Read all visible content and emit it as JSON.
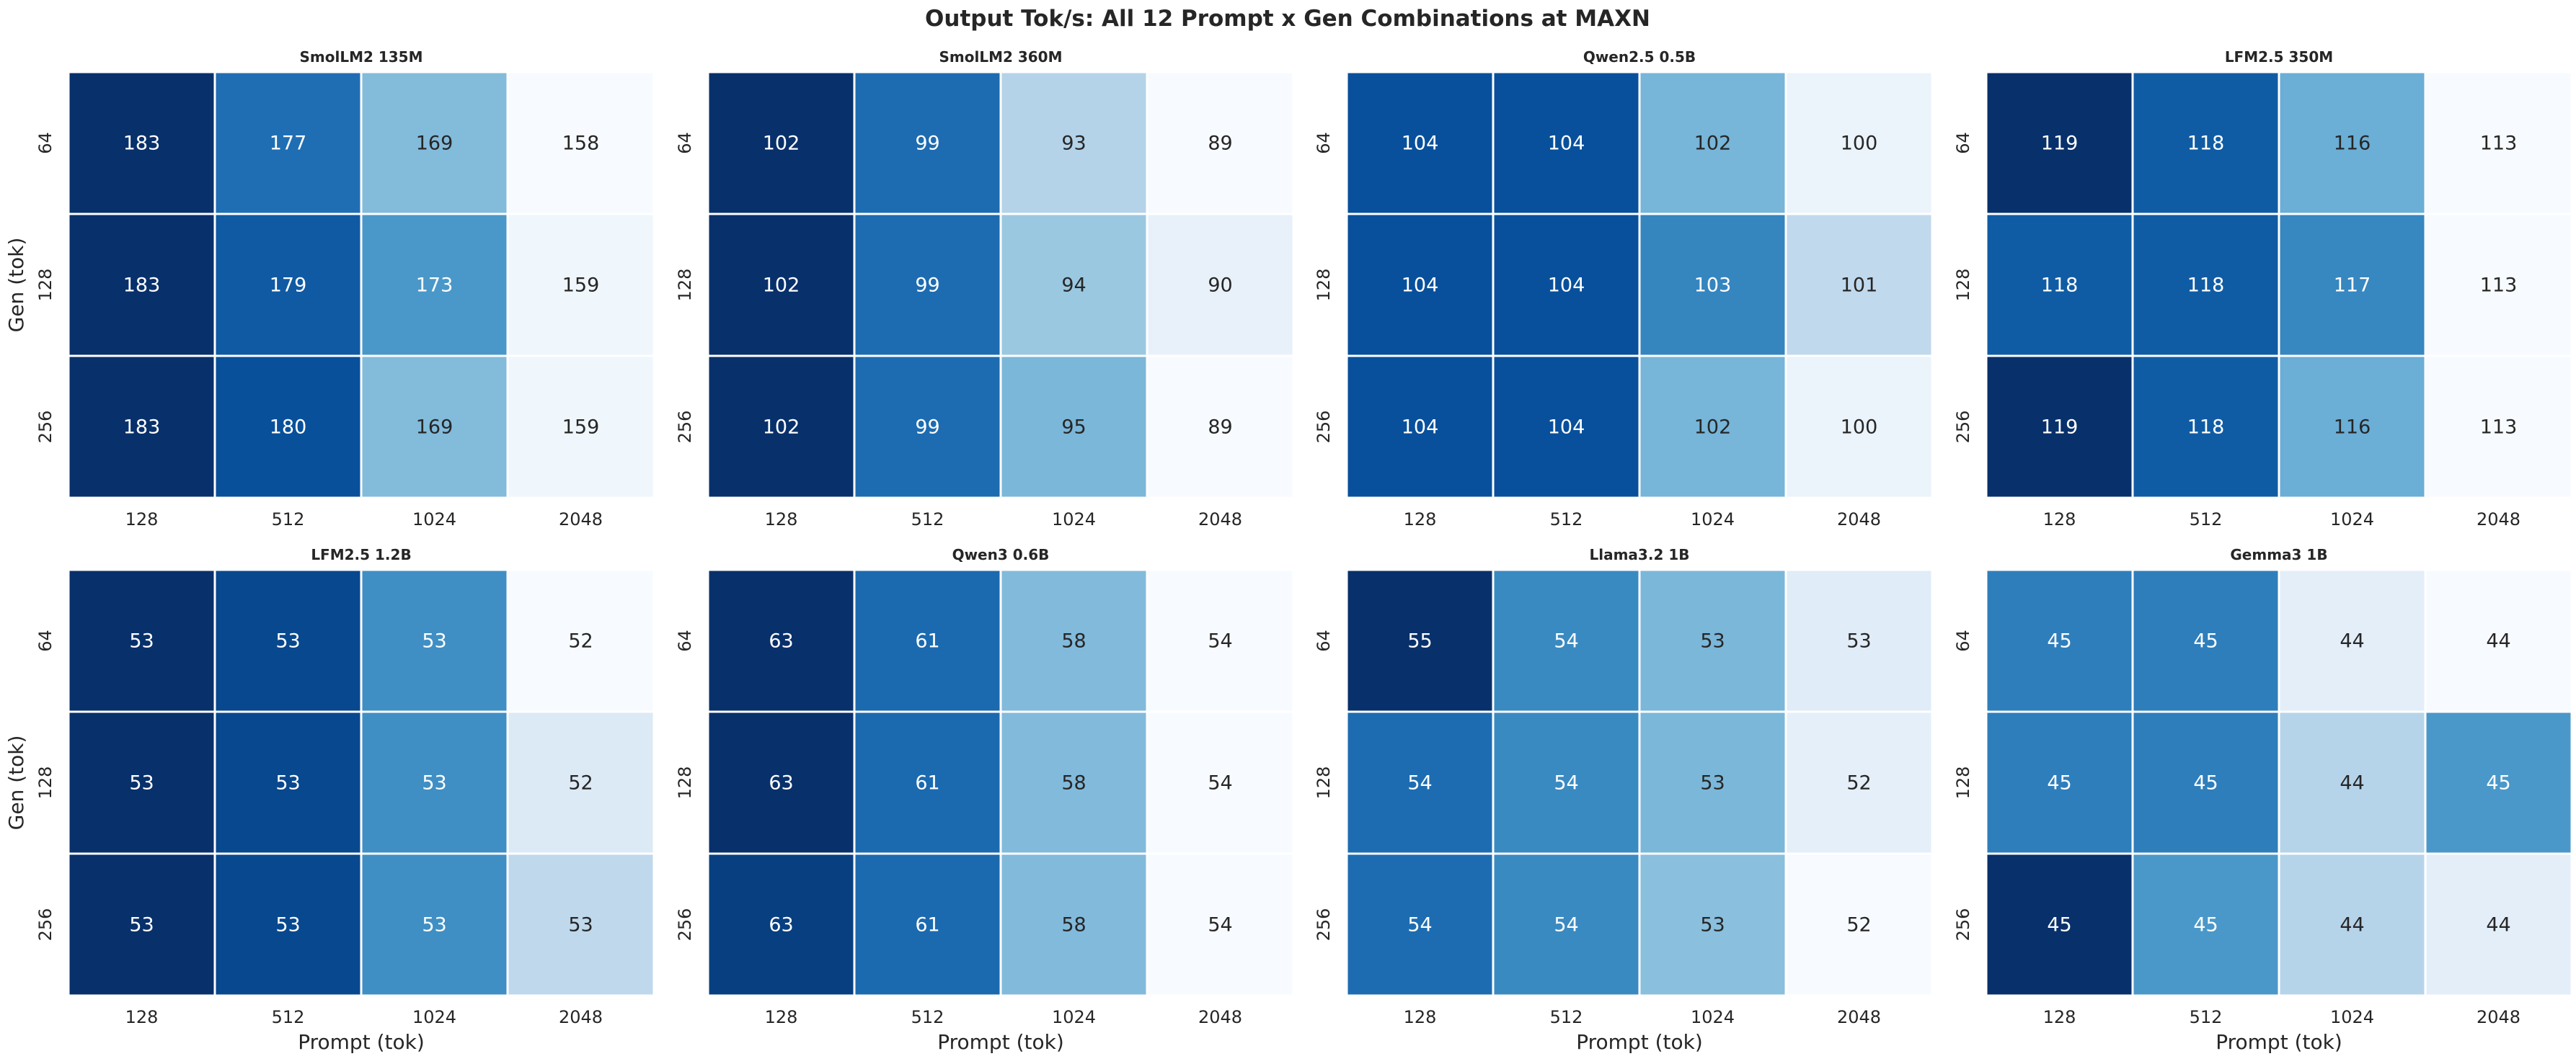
{
  "figure": {
    "title": "Output Tok/s: All 12 Prompt x Gen Combinations at MAXN",
    "xlabel": "Prompt (tok)",
    "ylabel": "Gen (tok)",
    "colormap": "Blues"
  },
  "chart_data": [
    {
      "type": "heatmap",
      "title": "SmolLM2 135M",
      "x_categories": [
        "128",
        "512",
        "1024",
        "2048"
      ],
      "y_categories": [
        "64",
        "128",
        "256"
      ],
      "values": [
        [
          183,
          177,
          169,
          158
        ],
        [
          183,
          179,
          173,
          159
        ],
        [
          183,
          180,
          169,
          159
        ]
      ],
      "cmap_range": [
        158,
        183
      ]
    },
    {
      "type": "heatmap",
      "title": "SmolLM2 360M",
      "x_categories": [
        "128",
        "512",
        "1024",
        "2048"
      ],
      "y_categories": [
        "64",
        "128",
        "256"
      ],
      "values": [
        [
          102,
          99,
          93,
          89
        ],
        [
          102,
          99,
          94,
          90
        ],
        [
          102,
          99,
          95,
          89
        ]
      ],
      "cmap_range": [
        89,
        102
      ]
    },
    {
      "type": "heatmap",
      "title": "Qwen2.5 0.5B",
      "x_categories": [
        "128",
        "512",
        "1024",
        "2048"
      ],
      "y_categories": [
        "64",
        "128",
        "256"
      ],
      "values": [
        [
          104,
          104,
          102,
          100
        ],
        [
          104,
          104,
          103,
          101
        ],
        [
          104,
          104,
          102,
          100
        ]
      ],
      "cmap_range": [
        99.7,
        104.6
      ]
    },
    {
      "type": "heatmap",
      "title": "LFM2.5 350M",
      "x_categories": [
        "128",
        "512",
        "1024",
        "2048"
      ],
      "y_categories": [
        "64",
        "128",
        "256"
      ],
      "values": [
        [
          119,
          118,
          116,
          113
        ],
        [
          118,
          118,
          117,
          113
        ],
        [
          119,
          118,
          116,
          113
        ]
      ],
      "cmap_range": [
        113,
        119
      ]
    },
    {
      "type": "heatmap",
      "title": "LFM2.5 1.2B",
      "x_categories": [
        "128",
        "512",
        "1024",
        "2048"
      ],
      "y_categories": [
        "64",
        "128",
        "256"
      ],
      "values": [
        [
          53.3,
          53.2,
          52.9,
          52.2
        ],
        [
          53.3,
          53.2,
          52.9,
          52.35
        ],
        [
          53.3,
          53.2,
          52.9,
          52.5
        ]
      ],
      "cmap_range": [
        52.2,
        53.3
      ]
    },
    {
      "type": "heatmap",
      "title": "Qwen3 0.6B",
      "x_categories": [
        "128",
        "512",
        "1024",
        "2048"
      ],
      "y_categories": [
        "64",
        "128",
        "256"
      ],
      "values": [
        [
          63,
          61,
          58,
          54
        ],
        [
          63,
          61,
          58,
          54
        ],
        [
          62.5,
          61,
          58,
          54
        ]
      ],
      "cmap_range": [
        54,
        63
      ]
    },
    {
      "type": "heatmap",
      "title": "Llama3.2 1B",
      "x_categories": [
        "128",
        "512",
        "1024",
        "2048"
      ],
      "y_categories": [
        "64",
        "128",
        "256"
      ],
      "values": [
        [
          54.8,
          53.9,
          53.4,
          52.5
        ],
        [
          54.2,
          53.9,
          53.4,
          52.45
        ],
        [
          54.2,
          53.9,
          53.3,
          52.2
        ]
      ],
      "cmap_range": [
        52.2,
        54.8
      ]
    },
    {
      "type": "heatmap",
      "title": "Gemma3 1B",
      "x_categories": [
        "128",
        "512",
        "1024",
        "2048"
      ],
      "y_categories": [
        "64",
        "128",
        "256"
      ],
      "values": [
        [
          44.8,
          44.8,
          44.2,
          44.1
        ],
        [
          44.8,
          44.8,
          44.4,
          44.7
        ],
        [
          45.1,
          44.7,
          44.4,
          44.2
        ]
      ],
      "cmap_range": [
        44.1,
        45.1
      ]
    }
  ]
}
